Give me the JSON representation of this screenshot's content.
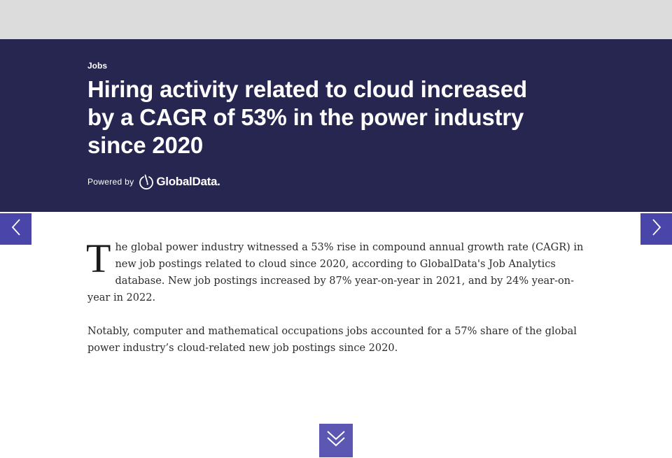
{
  "article": {
    "category": "Jobs",
    "headline": "Hiring activity related to cloud increased by a CAGR of 53% in the power industry since 2020",
    "powered_by_label": "Powered by",
    "brand_name": "GlobalData.",
    "dropcap": "T",
    "paragraph_1": "he global power industry witnessed a 53% rise in compound annual growth rate (CAGR) in new job postings related to cloud since 2020, according to GlobalData's Job Analytics database. New job postings increased by 87% year-on-year in 2021, and by 24% year-on-year in 2022.",
    "paragraph_2": "Notably, computer and mathematical occupations jobs accounted for a 57% share of the global power industry’s cloud-related new job postings since 2020."
  },
  "icons": {
    "prev": "chevron-left-icon",
    "next": "chevron-right-icon",
    "scroll": "double-chevron-down-icon",
    "logo": "globaldata-logo-icon"
  },
  "colors": {
    "top_bar": "#dcdcdc",
    "hero_bg": "#272650",
    "nav_button": "#4a45a8",
    "scroll_button": "#5b57b3"
  }
}
